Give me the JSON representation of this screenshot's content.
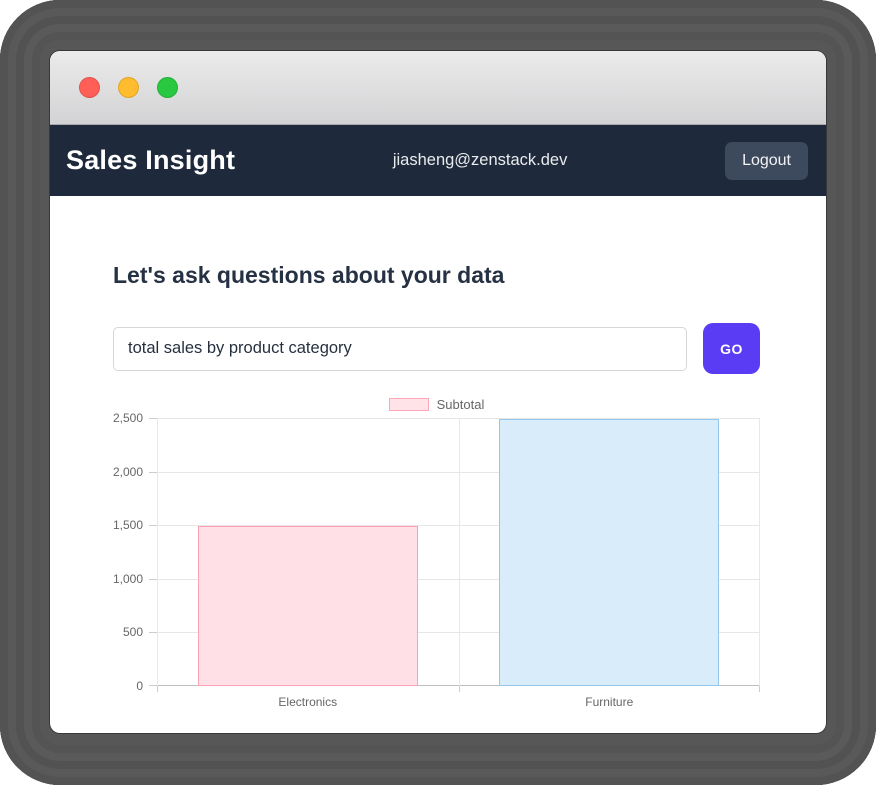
{
  "window": {
    "titlebar": {
      "traffic_lights": [
        {
          "name": "close",
          "color": "#ff5f57"
        },
        {
          "name": "minimize",
          "color": "#febc2e"
        },
        {
          "name": "zoom",
          "color": "#28c840"
        }
      ]
    },
    "header": {
      "app_title": "Sales Insight",
      "user_email": "jiasheng@zenstack.dev",
      "logout_label": "Logout"
    }
  },
  "main": {
    "heading": "Let's ask questions about your data",
    "query_input": {
      "value": "total sales by product category"
    },
    "go_button_label": "GO"
  },
  "chart_data": {
    "type": "bar",
    "title": "",
    "categories": [
      "Electronics",
      "Furniture"
    ],
    "series": [
      {
        "name": "Subtotal",
        "values": [
          1490,
          2490
        ]
      }
    ],
    "bar_colors": [
      {
        "fill": "#ffe0e7",
        "border": "#ffa1b5"
      },
      {
        "fill": "#d8ecfa",
        "border": "#93c7ee"
      }
    ],
    "legend": [
      {
        "label": "Subtotal",
        "fill": "#ffe3e9",
        "border": "#ffa7b9"
      }
    ],
    "legend_position": "top",
    "grid": true,
    "ylim": [
      0,
      2500
    ],
    "ytick_step": 500,
    "ytick_labels": [
      "0",
      "500",
      "1,000",
      "1,500",
      "2,000",
      "2,500"
    ],
    "xlabel": "",
    "ylabel": ""
  },
  "colors": {
    "header_navy": "#1e2a3b",
    "accent_purple": "#5b3cf5",
    "logout_bg": "#3d4a5e"
  }
}
